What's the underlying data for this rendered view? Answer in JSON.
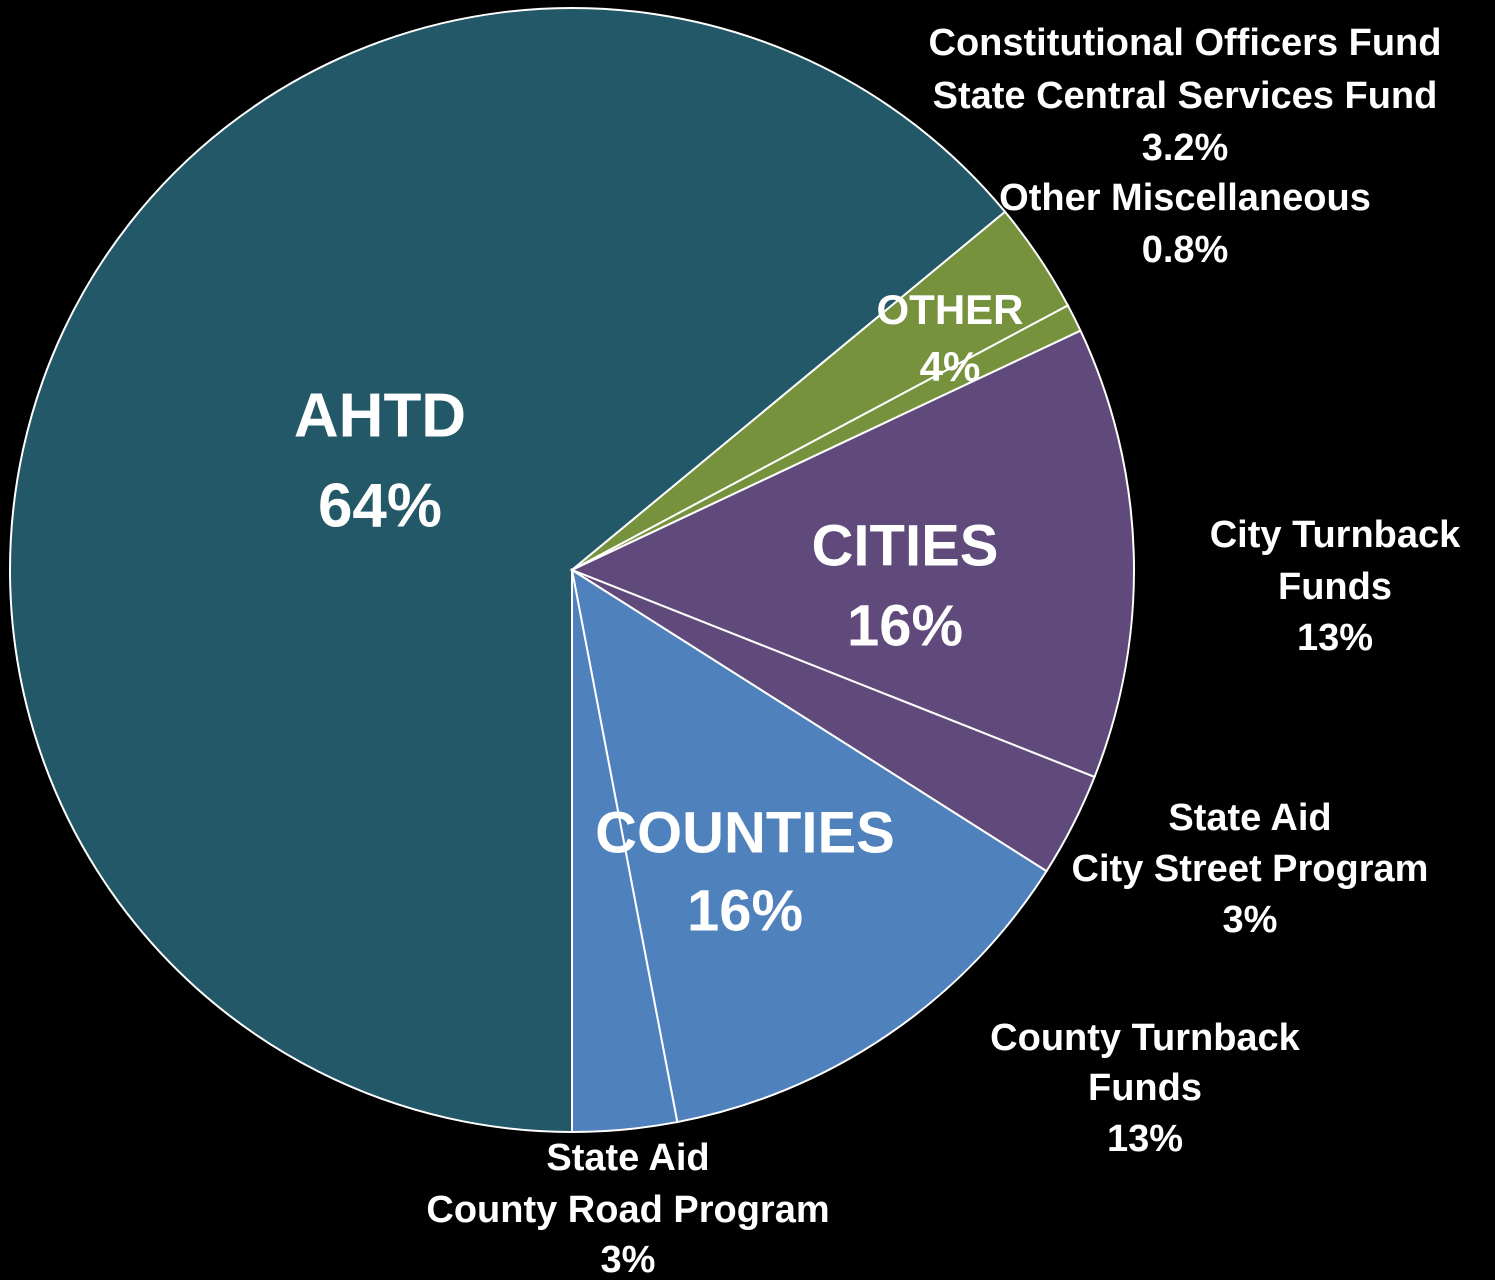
{
  "chart_data": {
    "type": "pie",
    "start_angle": 180,
    "groups": [
      {
        "name": "AHTD",
        "value": 64,
        "value_label": "64%",
        "color": "#225868",
        "slices": []
      },
      {
        "name": "OTHER",
        "value": 4,
        "value_label": "4%",
        "color": "#76923c",
        "slices": [
          {
            "name_lines": [
              "Constitutional Officers Fund",
              "State Central Services Fund"
            ],
            "value": 3.2,
            "value_label": "3.2%"
          },
          {
            "name_lines": [
              "Other Miscellaneous"
            ],
            "value": 0.8,
            "value_label": "0.8%"
          }
        ]
      },
      {
        "name": "CITIES",
        "value": 16,
        "value_label": "16%",
        "color": "#604a7b",
        "slices": [
          {
            "name_lines": [
              "City Turnback",
              "Funds"
            ],
            "value": 13,
            "value_label": "13%"
          },
          {
            "name_lines": [
              "State Aid",
              "City Street Program"
            ],
            "value": 3,
            "value_label": "3%"
          }
        ]
      },
      {
        "name": "COUNTIES",
        "value": 16,
        "value_label": "16%",
        "color": "#4f81bd",
        "slices": [
          {
            "name_lines": [
              "County Turnback",
              "Funds"
            ],
            "value": 13,
            "value_label": "13%"
          },
          {
            "name_lines": [
              "State Aid",
              "County Road Program"
            ],
            "value": 3,
            "value_label": "3%"
          }
        ]
      }
    ]
  }
}
